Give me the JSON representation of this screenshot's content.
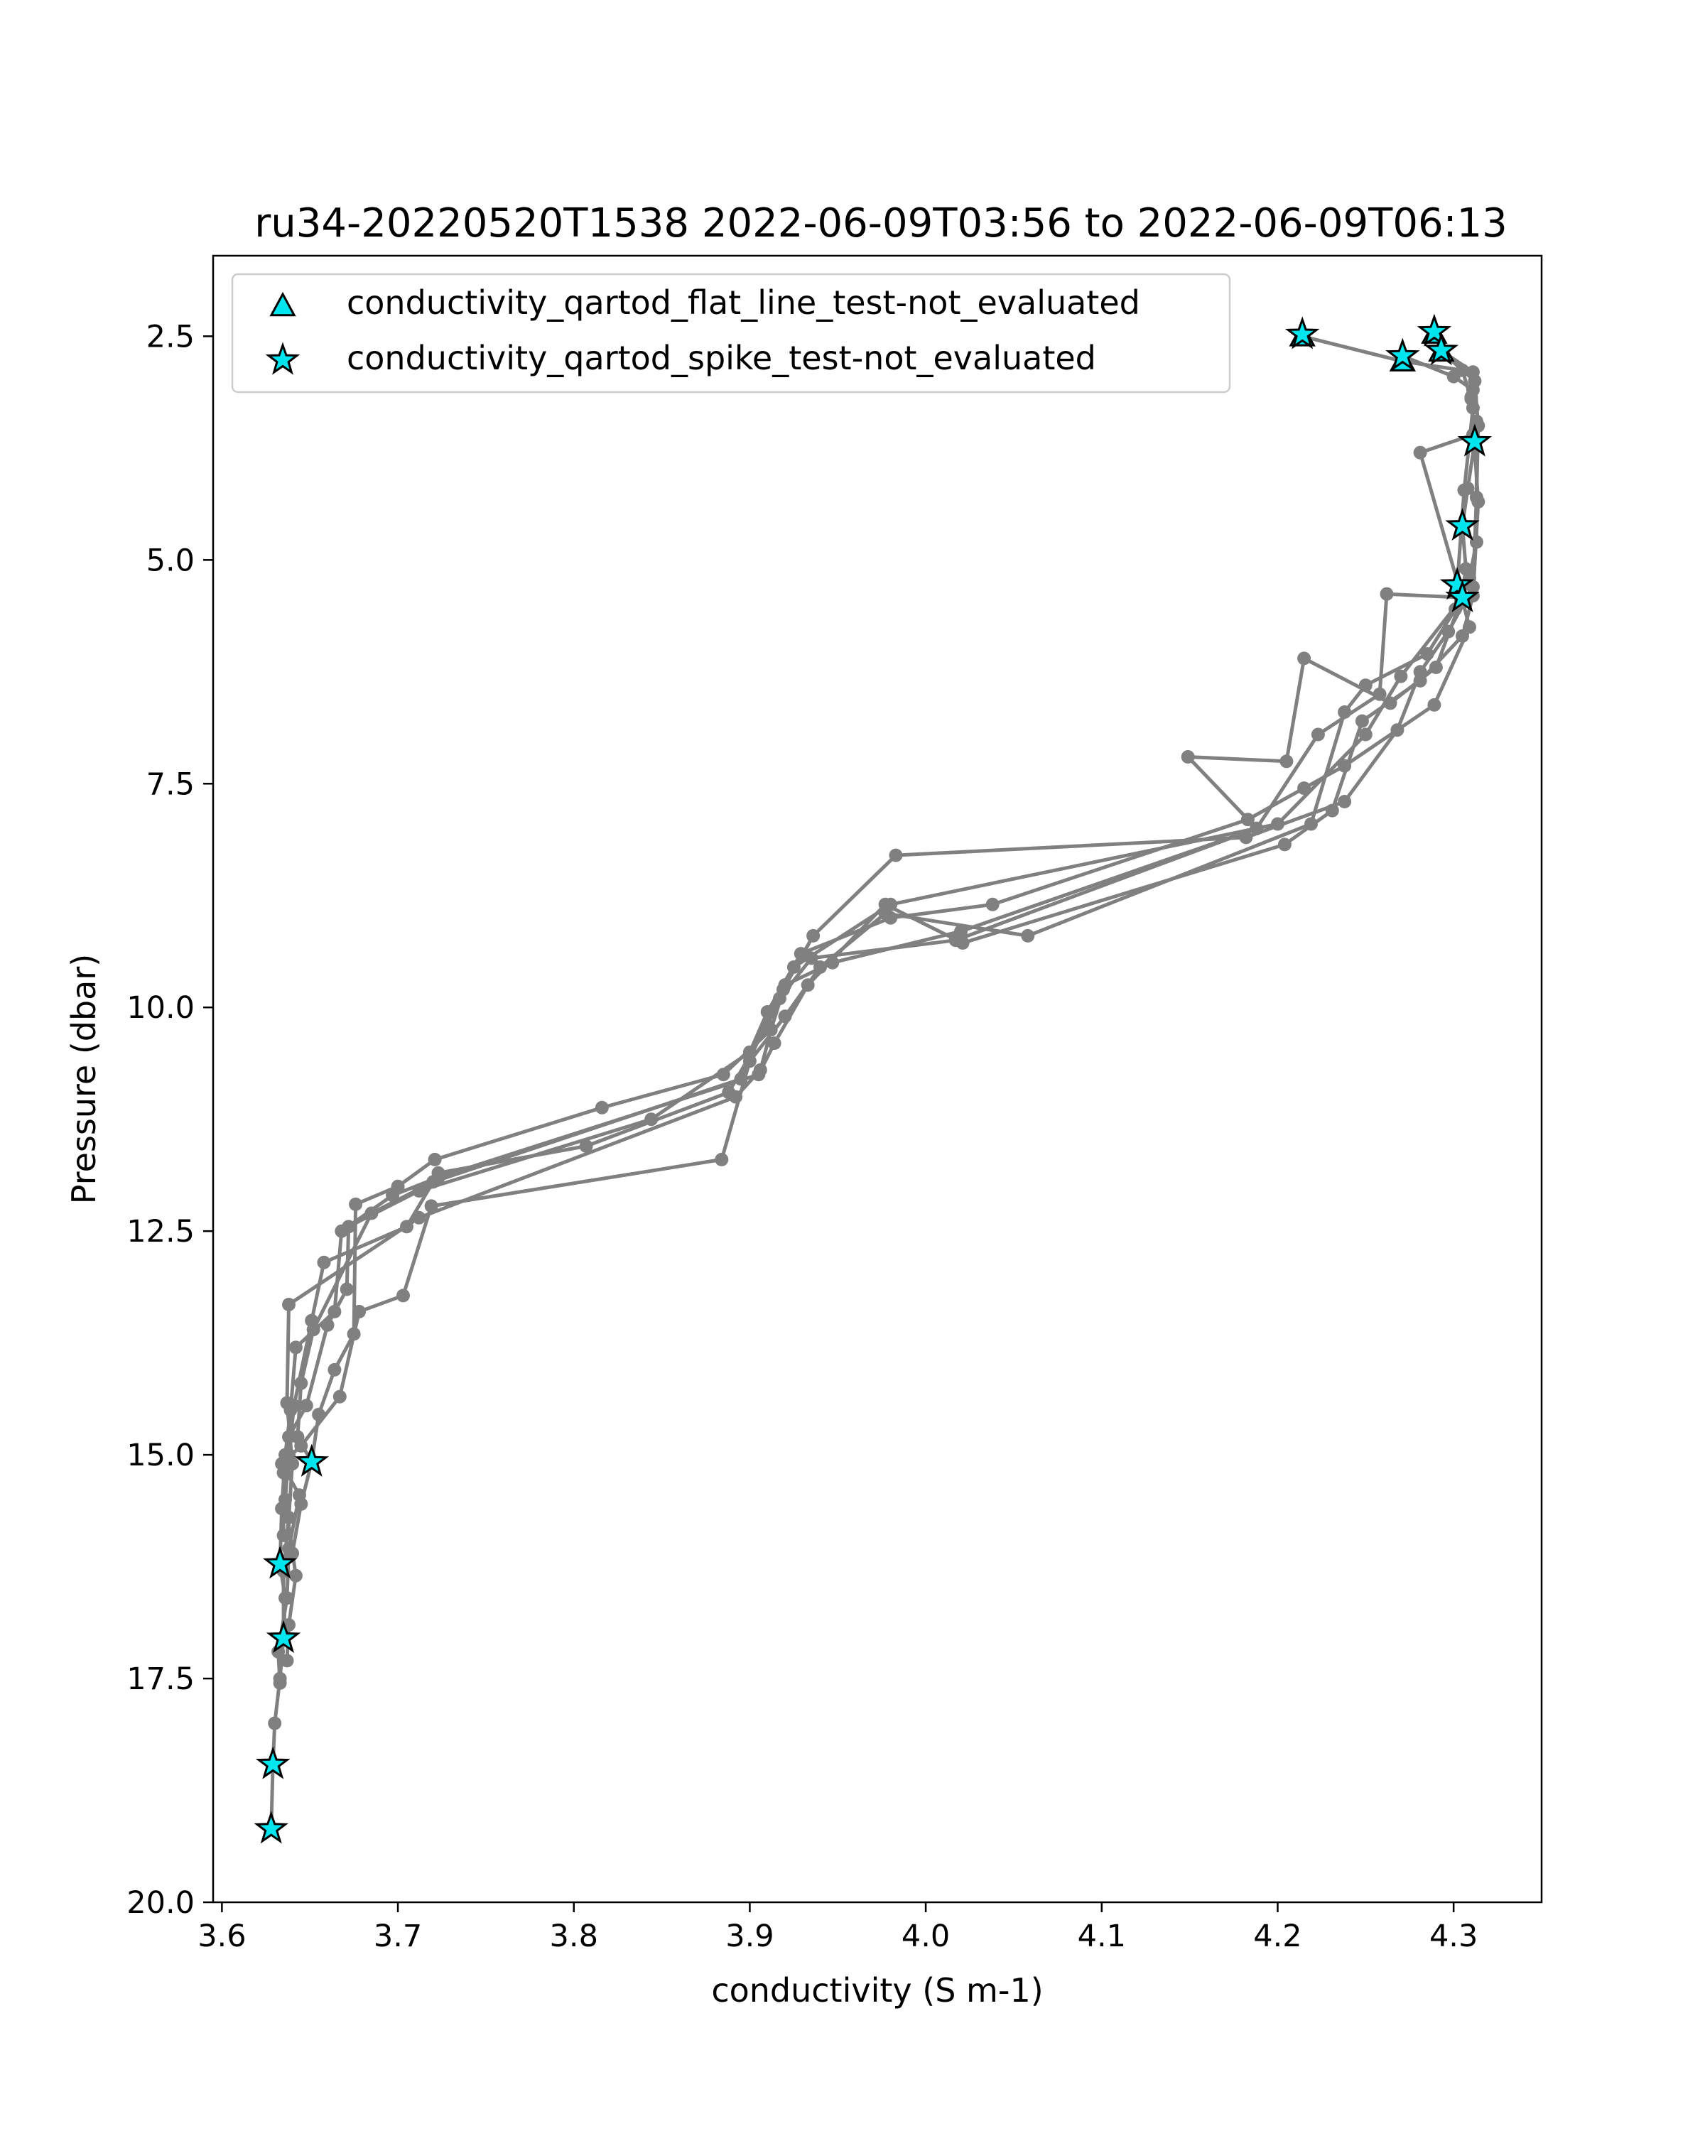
{
  "chart_data": {
    "type": "scatter",
    "title": "ru34-20220520T1538 2022-06-09T03:56 to 2022-06-09T06:13",
    "xlabel": "conductivity (S m-1)",
    "ylabel": "Pressure (dbar)",
    "xlim": [
      3.595,
      4.35
    ],
    "ylim": [
      20.0,
      1.6
    ],
    "y_inverted": true,
    "x_ticks": [
      3.6,
      3.7,
      3.8,
      3.9,
      4.0,
      4.1,
      4.2,
      4.3
    ],
    "x_tick_labels": [
      "3.6",
      "3.7",
      "3.8",
      "3.9",
      "4.0",
      "4.1",
      "4.2",
      "4.3"
    ],
    "y_ticks": [
      2.5,
      5.0,
      7.5,
      10.0,
      12.5,
      15.0,
      17.5,
      20.0
    ],
    "y_tick_labels": [
      "2.5",
      "5.0",
      "7.5",
      "10.0",
      "12.5",
      "15.0",
      "17.5",
      "20.0"
    ],
    "grid": false,
    "legend_position": "top-left",
    "profile_color": "#808080",
    "marker_color": "#00e5ee",
    "series": [
      {
        "name": "conductivity_qartod_flat_line_test-not_evaluated",
        "marker": "triangle",
        "points": [
          [
            4.214,
            2.5
          ],
          [
            4.271,
            2.78
          ],
          [
            4.289,
            2.47
          ],
          [
            4.293,
            2.67
          ]
        ]
      },
      {
        "name": "conductivity_qartod_spike_test-not_evaluated",
        "marker": "star",
        "points": [
          [
            4.214,
            2.48
          ],
          [
            4.271,
            2.72
          ],
          [
            4.289,
            2.45
          ],
          [
            4.293,
            2.66
          ],
          [
            4.312,
            3.68
          ],
          [
            4.305,
            4.62
          ],
          [
            4.302,
            5.28
          ],
          [
            4.305,
            5.42
          ],
          [
            3.651,
            15.08
          ],
          [
            3.633,
            16.22
          ],
          [
            3.635,
            17.05
          ],
          [
            3.629,
            18.46
          ],
          [
            3.628,
            19.18
          ]
        ]
      }
    ],
    "profiles": [
      [
        [
          4.214,
          2.5
        ],
        [
          4.271,
          2.78
        ],
        [
          4.305,
          2.88
        ],
        [
          4.31,
          3.2
        ],
        [
          4.312,
          3.68
        ],
        [
          4.308,
          4.2
        ],
        [
          4.305,
          4.62
        ],
        [
          4.307,
          5.1
        ],
        [
          4.305,
          5.42
        ],
        [
          4.262,
          5.38
        ],
        [
          4.258,
          6.5
        ],
        [
          4.223,
          6.95
        ],
        [
          4.188,
          8.0
        ],
        [
          4.02,
          9.15
        ],
        [
          3.947,
          9.5
        ],
        [
          3.92,
          9.75
        ],
        [
          3.912,
          10.25
        ],
        [
          3.885,
          10.75
        ],
        [
          3.816,
          11.12
        ],
        [
          3.721,
          11.7
        ],
        [
          3.7,
          12.0
        ],
        [
          3.676,
          12.2
        ],
        [
          3.675,
          13.65
        ],
        [
          3.664,
          14.05
        ],
        [
          3.655,
          14.55
        ],
        [
          3.651,
          15.08
        ],
        [
          3.645,
          15.55
        ],
        [
          3.64,
          16.1
        ],
        [
          3.633,
          16.22
        ],
        [
          3.636,
          16.6
        ],
        [
          3.635,
          17.05
        ],
        [
          3.633,
          17.5
        ],
        [
          3.63,
          18.0
        ],
        [
          3.629,
          18.46
        ],
        [
          3.628,
          19.18
        ]
      ],
      [
        [
          4.289,
          2.47
        ],
        [
          4.293,
          2.67
        ],
        [
          4.312,
          3.0
        ],
        [
          4.314,
          3.5
        ],
        [
          4.313,
          4.3
        ],
        [
          4.311,
          5.3
        ],
        [
          4.297,
          5.8
        ],
        [
          4.281,
          6.25
        ],
        [
          4.268,
          6.9
        ],
        [
          4.238,
          7.7
        ],
        [
          4.182,
          8.1
        ],
        [
          3.983,
          8.3
        ],
        [
          3.936,
          9.2
        ],
        [
          3.919,
          9.8
        ],
        [
          3.91,
          10.2
        ],
        [
          3.888,
          10.95
        ],
        [
          3.807,
          11.55
        ],
        [
          3.723,
          11.85
        ],
        [
          3.705,
          12.45
        ],
        [
          3.658,
          12.85
        ],
        [
          3.651,
          13.5
        ],
        [
          3.641,
          14.45
        ],
        [
          3.638,
          15.0
        ],
        [
          3.636,
          15.5
        ],
        [
          3.642,
          16.35
        ],
        [
          3.638,
          16.9
        ],
        [
          3.637,
          17.3
        ]
      ],
      [
        [
          4.271,
          2.72
        ],
        [
          4.3,
          2.95
        ],
        [
          4.311,
          3.1
        ],
        [
          4.311,
          3.6
        ],
        [
          4.281,
          3.8
        ],
        [
          4.303,
          5.3
        ],
        [
          4.309,
          5.75
        ],
        [
          4.289,
          6.62
        ],
        [
          4.238,
          7.3
        ],
        [
          4.215,
          7.55
        ],
        [
          4.183,
          7.9
        ],
        [
          4.038,
          8.85
        ],
        [
          3.98,
          9.0
        ],
        [
          3.929,
          9.4
        ],
        [
          3.91,
          10.05
        ],
        [
          3.9,
          10.5
        ],
        [
          3.844,
          11.25
        ],
        [
          3.712,
          12.05
        ],
        [
          3.672,
          12.45
        ],
        [
          3.671,
          13.15
        ],
        [
          3.66,
          13.55
        ],
        [
          3.648,
          14.45
        ],
        [
          3.638,
          14.8
        ],
        [
          3.635,
          15.2
        ],
        [
          3.635,
          15.9
        ]
      ],
      [
        [
          4.293,
          2.66
        ],
        [
          4.311,
          2.9
        ],
        [
          4.311,
          3.3
        ],
        [
          4.306,
          4.22
        ],
        [
          4.302,
          5.28
        ],
        [
          4.301,
          5.55
        ],
        [
          4.285,
          6.05
        ],
        [
          4.25,
          6.4
        ],
        [
          4.238,
          6.7
        ],
        [
          4.219,
          7.95
        ],
        [
          4.058,
          9.2
        ],
        [
          3.977,
          8.95
        ],
        [
          3.94,
          9.55
        ],
        [
          3.92,
          10.1
        ],
        [
          3.9,
          10.6
        ],
        [
          3.884,
          11.7
        ],
        [
          3.719,
          12.22
        ],
        [
          3.703,
          13.22
        ],
        [
          3.678,
          13.4
        ],
        [
          3.667,
          14.35
        ],
        [
          3.645,
          14.9
        ],
        [
          3.634,
          15.1
        ],
        [
          3.644,
          15.45
        ],
        [
          3.638,
          16.05
        ],
        [
          3.637,
          16.6
        ],
        [
          3.632,
          17.2
        ],
        [
          3.633,
          17.55
        ]
      ],
      [
        [
          4.31,
          3.18
        ],
        [
          4.314,
          4.35
        ],
        [
          4.311,
          5.4
        ],
        [
          4.305,
          5.85
        ],
        [
          4.281,
          6.35
        ],
        [
          4.248,
          6.8
        ],
        [
          4.231,
          7.8
        ],
        [
          4.204,
          8.18
        ],
        [
          4.021,
          9.28
        ],
        [
          3.977,
          8.85
        ],
        [
          3.933,
          9.75
        ],
        [
          3.914,
          10.4
        ],
        [
          3.905,
          10.75
        ],
        [
          3.723,
          11.9
        ],
        [
          3.697,
          12.1
        ],
        [
          3.668,
          12.5
        ],
        [
          3.664,
          13.4
        ],
        [
          3.642,
          13.8
        ],
        [
          3.639,
          14.5
        ],
        [
          3.636,
          15.0
        ],
        [
          3.634,
          15.6
        ],
        [
          3.633,
          16.22
        ]
      ],
      [
        [
          4.313,
          3.45
        ],
        [
          4.313,
          4.8
        ],
        [
          4.309,
          5.2
        ],
        [
          4.29,
          6.2
        ],
        [
          4.264,
          6.6
        ],
        [
          4.215,
          6.1
        ],
        [
          4.205,
          7.25
        ],
        [
          4.149,
          7.2
        ],
        [
          4.188,
          8.0
        ],
        [
          4.017,
          9.25
        ],
        [
          3.935,
          9.45
        ],
        [
          3.917,
          9.9
        ],
        [
          3.906,
          10.7
        ],
        [
          3.892,
          11.0
        ],
        [
          3.712,
          12.35
        ],
        [
          3.638,
          13.32
        ],
        [
          3.637,
          14.42
        ],
        [
          3.64,
          15.1
        ],
        [
          3.638,
          15.7
        ],
        [
          3.635,
          16.3
        ],
        [
          3.635,
          17.05
        ]
      ],
      [
        [
          4.305,
          5.42
        ],
        [
          4.27,
          6.3
        ],
        [
          4.25,
          6.95
        ],
        [
          4.2,
          7.95
        ],
        [
          3.98,
          8.85
        ],
        [
          3.925,
          9.55
        ],
        [
          3.912,
          10.05
        ],
        [
          3.895,
          10.8
        ],
        [
          3.72,
          11.95
        ],
        [
          3.685,
          12.3
        ],
        [
          3.652,
          13.6
        ],
        [
          3.645,
          14.2
        ],
        [
          3.643,
          14.8
        ],
        [
          3.651,
          15.08
        ]
      ]
    ]
  }
}
